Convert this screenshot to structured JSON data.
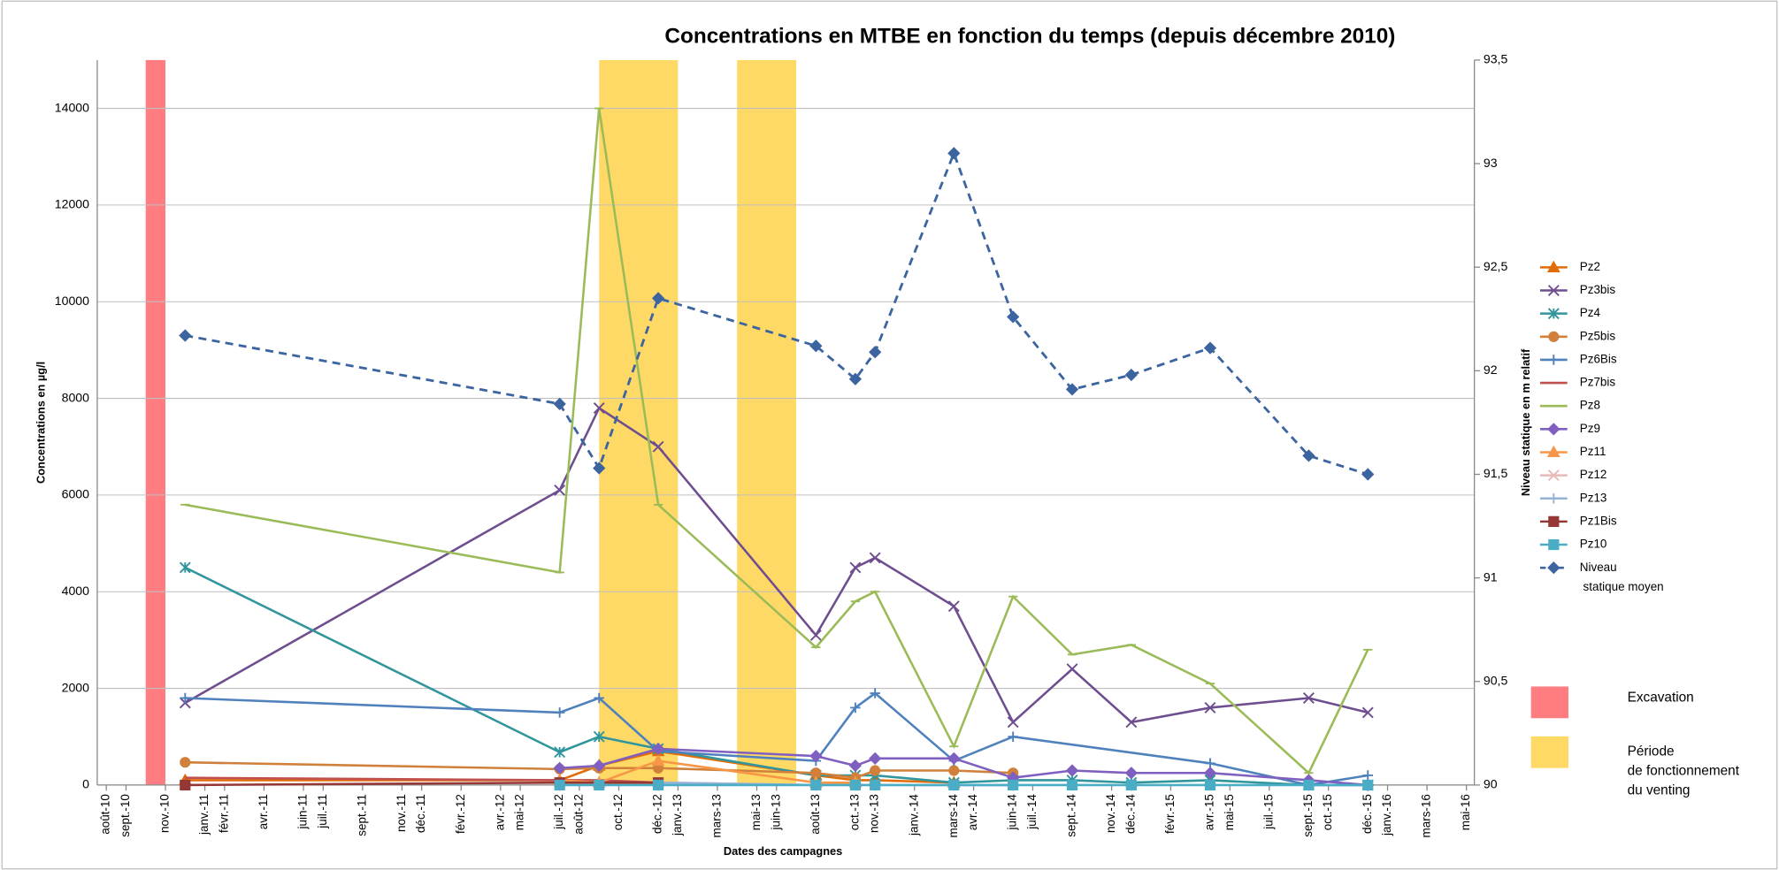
{
  "chart_data": {
    "type": "line",
    "title": "Concentrations en MTBE en fonction du temps (depuis décembre 2010)",
    "y_label": "Concentrations en µg/l",
    "y2_label": "Niveau statique en m relatif",
    "x_label": "Dates des campagnes",
    "xlim": [
      "2010-08",
      "2016-05"
    ],
    "xticks": [
      {
        "value": "2010-08",
        "label": "août-10"
      },
      {
        "value": "2010-09",
        "label": "sept.-10"
      },
      {
        "value": "2010-11",
        "label": "nov.-10"
      },
      {
        "value": "2011-01",
        "label": "janv.-11"
      },
      {
        "value": "2011-02",
        "label": "févr.-11"
      },
      {
        "value": "2011-04",
        "label": "avr.-11"
      },
      {
        "value": "2011-06",
        "label": "juin-11"
      },
      {
        "value": "2011-07",
        "label": "juil.-11"
      },
      {
        "value": "2011-09",
        "label": "sept.-11"
      },
      {
        "value": "2011-11",
        "label": "nov.-11"
      },
      {
        "value": "2011-12",
        "label": "déc.-11"
      },
      {
        "value": "2012-02",
        "label": "févr.-12"
      },
      {
        "value": "2012-04",
        "label": "avr.-12"
      },
      {
        "value": "2012-05",
        "label": "mai-12"
      },
      {
        "value": "2012-07",
        "label": "juil.-12"
      },
      {
        "value": "2012-08",
        "label": "août-12"
      },
      {
        "value": "2012-10",
        "label": "oct.-12"
      },
      {
        "value": "2012-12",
        "label": "déc.-12"
      },
      {
        "value": "2013-01",
        "label": "janv.-13"
      },
      {
        "value": "2013-03",
        "label": "mars-13"
      },
      {
        "value": "2013-05",
        "label": "mai-13"
      },
      {
        "value": "2013-06",
        "label": "juin-13"
      },
      {
        "value": "2013-08",
        "label": "août-13"
      },
      {
        "value": "2013-10",
        "label": "oct.-13"
      },
      {
        "value": "2013-11",
        "label": "nov.-13"
      },
      {
        "value": "2014-01",
        "label": "janv.-14"
      },
      {
        "value": "2014-03",
        "label": "mars-14"
      },
      {
        "value": "2014-04",
        "label": "avr.-14"
      },
      {
        "value": "2014-06",
        "label": "juin-14"
      },
      {
        "value": "2014-07",
        "label": "juil.-14"
      },
      {
        "value": "2014-09",
        "label": "sept.-14"
      },
      {
        "value": "2014-11",
        "label": "nov.-14"
      },
      {
        "value": "2014-12",
        "label": "déc.-14"
      },
      {
        "value": "2015-02",
        "label": "févr.-15"
      },
      {
        "value": "2015-04",
        "label": "avr.-15"
      },
      {
        "value": "2015-05",
        "label": "mai-15"
      },
      {
        "value": "2015-07",
        "label": "juil.-15"
      },
      {
        "value": "2015-09",
        "label": "sept.-15"
      },
      {
        "value": "2015-10",
        "label": "oct.-15"
      },
      {
        "value": "2015-12",
        "label": "déc.-15"
      },
      {
        "value": "2016-01",
        "label": "janv.-16"
      },
      {
        "value": "2016-03",
        "label": "mars-16"
      },
      {
        "value": "2016-05",
        "label": "mai-16"
      }
    ],
    "ylim": [
      0,
      15000
    ],
    "yticks": [
      0,
      2000,
      4000,
      6000,
      8000,
      10000,
      12000,
      14000
    ],
    "y2lim": [
      90,
      93.5
    ],
    "y2ticks": [
      90,
      {
        "value": 90.5,
        "label": "90,5"
      },
      91,
      {
        "value": 91.5,
        "label": "91,5"
      },
      92,
      {
        "value": 92.5,
        "label": "92,5"
      },
      93,
      {
        "value": 93.5,
        "label": "93,5"
      }
    ],
    "grid": true,
    "periods": [
      {
        "name": "Excavation",
        "color": "#ff7c80",
        "x": [
          [
            "2010-10",
            "2010-10"
          ]
        ]
      },
      {
        "name": "Période\nde fonctionnement\ndu venting",
        "color": "#ffd966",
        "x": [
          [
            "2012-09",
            "2012-12"
          ],
          [
            "2013-04",
            "2013-06"
          ]
        ]
      }
    ],
    "series": [
      {
        "name": "Pz2",
        "color": "#e36c09",
        "marker": "triangle",
        "x": [
          "2010-12",
          "2012-07",
          "2012-09",
          "2012-12",
          "2013-08",
          "2013-10",
          "2013-11",
          "2014-03"
        ],
        "values": [
          100,
          100,
          400,
          700,
          200,
          100,
          100,
          50
        ]
      },
      {
        "name": "Pz3bis",
        "color": "#6f4e8f",
        "marker": "x",
        "x": [
          "2010-12",
          "2012-07",
          "2012-09",
          "2012-12",
          "2013-08",
          "2013-10",
          "2013-11",
          "2014-03",
          "2014-06",
          "2014-09",
          "2014-12",
          "2015-04",
          "2015-09",
          "2015-12"
        ],
        "values": [
          1700,
          6100,
          7800,
          7000,
          3100,
          4500,
          4700,
          3700,
          1300,
          2400,
          1300,
          1600,
          1800,
          1500
        ]
      },
      {
        "name": "Pz4",
        "color": "#31959c",
        "marker": "star",
        "x": [
          "2010-12",
          "2012-07",
          "2012-09",
          "2012-12",
          "2013-08",
          "2013-10",
          "2013-11",
          "2014-03",
          "2014-06",
          "2014-09",
          "2014-12",
          "2015-04",
          "2015-09",
          "2015-12"
        ],
        "values": [
          4500,
          680,
          1000,
          750,
          200,
          200,
          200,
          50,
          100,
          100,
          50,
          100,
          0,
          0
        ]
      },
      {
        "name": "Pz5bis",
        "color": "#d0803a",
        "marker": "circle",
        "x": [
          "2010-12",
          "2012-07",
          "2012-09",
          "2012-12",
          "2013-08",
          "2013-10",
          "2013-11",
          "2014-03",
          "2014-06"
        ],
        "values": [
          470,
          330,
          350,
          350,
          250,
          150,
          300,
          300,
          250
        ]
      },
      {
        "name": "Pz6Bis",
        "color": "#4f81bd",
        "marker": "plus",
        "x": [
          "2010-12",
          "2012-07",
          "2012-09",
          "2012-12",
          "2013-08",
          "2013-10",
          "2013-11",
          "2014-03",
          "2014-06",
          "2015-04",
          "2015-09",
          "2015-12"
        ],
        "values": [
          1800,
          1500,
          1800,
          700,
          500,
          1600,
          1900,
          500,
          1000,
          450,
          0,
          200
        ]
      },
      {
        "name": "Pz7bis",
        "color": "#c0504d",
        "marker": "none",
        "x": [
          "2010-12",
          "2012-07",
          "2012-09",
          "2012-12"
        ],
        "values": [
          150,
          100,
          100,
          50
        ]
      },
      {
        "name": "Pz8",
        "color": "#9bbb59",
        "marker": "dash",
        "x": [
          "2010-12",
          "2012-07",
          "2012-09",
          "2012-12",
          "2013-08",
          "2013-10",
          "2013-11",
          "2014-03",
          "2014-06",
          "2014-09",
          "2014-12",
          "2015-04",
          "2015-09",
          "2015-12"
        ],
        "values": [
          5800,
          4400,
          14000,
          5800,
          2850,
          3800,
          4000,
          800,
          3900,
          2700,
          2900,
          2100,
          250,
          2800
        ]
      },
      {
        "name": "Pz9",
        "color": "#7f5fbf",
        "marker": "diamond",
        "x": [
          "2012-07",
          "2012-09",
          "2012-12",
          "2013-08",
          "2013-10",
          "2013-11",
          "2014-03",
          "2014-06",
          "2014-09",
          "2014-12",
          "2015-04",
          "2015-09",
          "2015-12"
        ],
        "values": [
          350,
          400,
          750,
          600,
          400,
          550,
          550,
          150,
          300,
          250,
          250,
          100,
          0
        ]
      },
      {
        "name": "Pz11",
        "color": "#f79646",
        "marker": "triangle",
        "x": [
          "2012-07",
          "2012-09",
          "2012-12",
          "2013-08",
          "2013-10"
        ],
        "values": [
          100,
          50,
          500,
          50,
          50
        ]
      },
      {
        "name": "Pz12",
        "color": "#e6b9b8",
        "marker": "x",
        "x": [
          "2012-12",
          "2013-08"
        ],
        "values": [
          50,
          0
        ]
      },
      {
        "name": "Pz13",
        "color": "#95b3d7",
        "marker": "plus",
        "x": [
          "2012-12",
          "2013-08",
          "2014-06"
        ],
        "values": [
          50,
          0,
          0
        ]
      },
      {
        "name": "Pz1Bis",
        "color": "#953735",
        "marker": "square",
        "x": [
          "2010-12",
          "2012-07",
          "2012-12"
        ],
        "values": [
          0,
          50,
          50
        ]
      },
      {
        "name": "Pz10",
        "color": "#4bacc6",
        "marker": "square",
        "x": [
          "2012-07",
          "2012-09",
          "2012-12",
          "2013-08",
          "2013-10",
          "2013-11",
          "2014-03",
          "2014-06",
          "2014-09",
          "2014-12",
          "2015-04",
          "2015-09",
          "2015-12"
        ],
        "values": [
          0,
          0,
          0,
          0,
          0,
          0,
          0,
          0,
          0,
          0,
          0,
          0,
          0
        ]
      },
      {
        "name": "Niveau\n statique moyen",
        "color": "#3b64a0",
        "marker": "diamond",
        "dashed": true,
        "axis": "y2",
        "x": [
          "2010-12",
          "2012-07",
          "2012-09",
          "2012-12",
          "2013-08",
          "2013-10",
          "2013-11",
          "2014-03",
          "2014-06",
          "2014-09",
          "2014-12",
          "2015-04",
          "2015-09",
          "2015-12"
        ],
        "values": [
          92.17,
          91.84,
          91.53,
          92.35,
          92.12,
          91.96,
          92.09,
          93.05,
          92.26,
          91.91,
          91.98,
          92.11,
          91.59,
          91.5
        ]
      }
    ]
  }
}
